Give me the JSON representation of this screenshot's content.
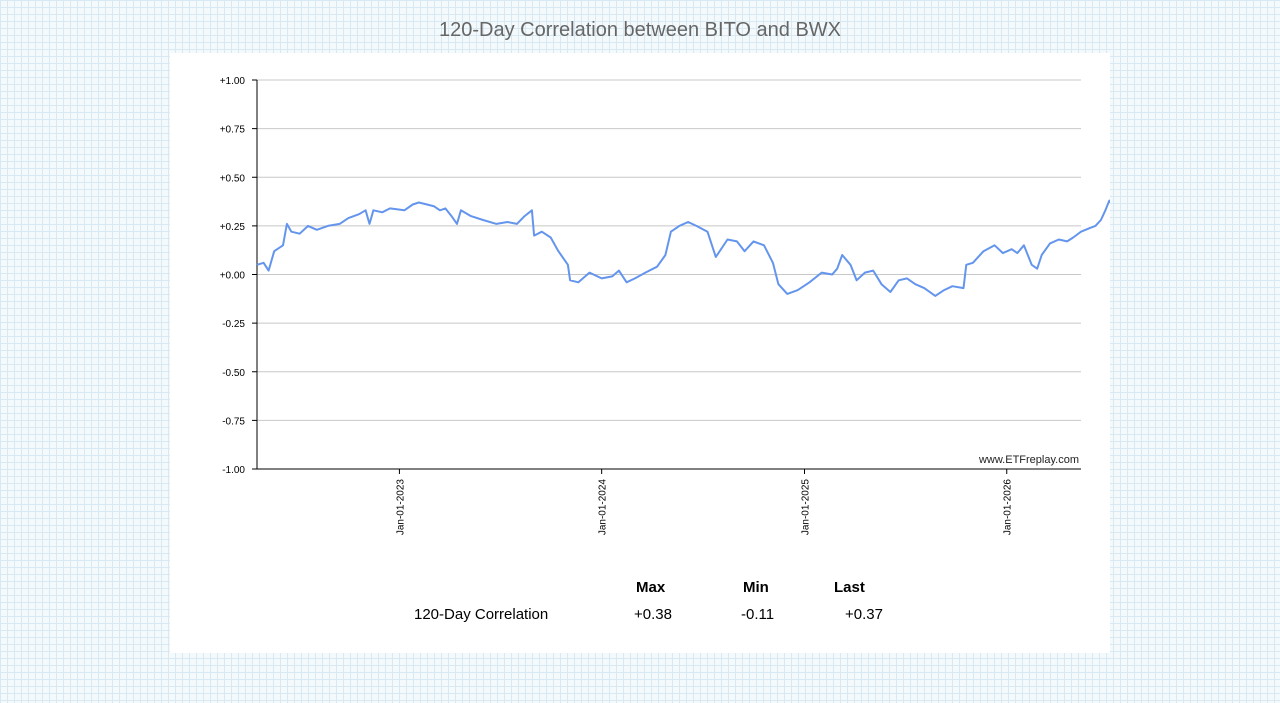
{
  "chart_data": {
    "type": "line",
    "title": "120-Day Correlation between BITO and BWX",
    "watermark": "www.ETFreplay.com",
    "ylim": [
      -1,
      1
    ],
    "y_ticks": [
      "+1.00",
      "+0.75",
      "+0.50",
      "+0.25",
      "+0.00",
      "-0.25",
      "-0.50",
      "-0.75",
      "-1.00"
    ],
    "x_range": [
      "2022-04-19",
      "2026-05-15"
    ],
    "x_ticks": [
      {
        "date": "2023-01-01",
        "label": "Jan-01-2023"
      },
      {
        "date": "2024-01-01",
        "label": "Jan-01-2024"
      },
      {
        "date": "2025-01-01",
        "label": "Jan-01-2025"
      },
      {
        "date": "2026-01-01",
        "label": "Jan-01-2026"
      }
    ],
    "grid": true,
    "line_color": "#6495ED",
    "series": [
      {
        "points": [
          [
            "2022-04-19",
            0.05
          ],
          [
            "2022-05-01",
            0.06
          ],
          [
            "2022-05-10",
            0.02
          ],
          [
            "2022-05-20",
            0.12
          ],
          [
            "2022-06-05",
            0.15
          ],
          [
            "2022-06-12",
            0.26
          ],
          [
            "2022-06-20",
            0.22
          ],
          [
            "2022-07-05",
            0.21
          ],
          [
            "2022-07-20",
            0.25
          ],
          [
            "2022-08-05",
            0.23
          ],
          [
            "2022-08-25",
            0.25
          ],
          [
            "2022-09-15",
            0.26
          ],
          [
            "2022-10-01",
            0.29
          ],
          [
            "2022-10-20",
            0.31
          ],
          [
            "2022-11-01",
            0.33
          ],
          [
            "2022-11-08",
            0.26
          ],
          [
            "2022-11-15",
            0.33
          ],
          [
            "2022-12-01",
            0.32
          ],
          [
            "2022-12-15",
            0.34
          ],
          [
            "2023-01-10",
            0.33
          ],
          [
            "2023-01-25",
            0.36
          ],
          [
            "2023-02-05",
            0.37
          ],
          [
            "2023-02-20",
            0.36
          ],
          [
            "2023-03-05",
            0.35
          ],
          [
            "2023-03-15",
            0.33
          ],
          [
            "2023-03-25",
            0.34
          ],
          [
            "2023-04-05",
            0.3
          ],
          [
            "2023-04-15",
            0.26
          ],
          [
            "2023-04-22",
            0.33
          ],
          [
            "2023-05-10",
            0.3
          ],
          [
            "2023-06-01",
            0.28
          ],
          [
            "2023-06-25",
            0.26
          ],
          [
            "2023-07-15",
            0.27
          ],
          [
            "2023-08-01",
            0.26
          ],
          [
            "2023-08-15",
            0.3
          ],
          [
            "2023-08-28",
            0.33
          ],
          [
            "2023-09-01",
            0.2
          ],
          [
            "2023-09-15",
            0.22
          ],
          [
            "2023-10-01",
            0.19
          ],
          [
            "2023-10-15",
            0.12
          ],
          [
            "2023-11-01",
            0.05
          ],
          [
            "2023-11-05",
            -0.03
          ],
          [
            "2023-11-20",
            -0.04
          ],
          [
            "2023-12-10",
            0.01
          ],
          [
            "2024-01-01",
            -0.02
          ],
          [
            "2024-01-20",
            -0.01
          ],
          [
            "2024-02-01",
            0.02
          ],
          [
            "2024-02-15",
            -0.04
          ],
          [
            "2024-03-01",
            -0.02
          ],
          [
            "2024-03-20",
            0.01
          ],
          [
            "2024-04-10",
            0.04
          ],
          [
            "2024-04-25",
            0.1
          ],
          [
            "2024-05-05",
            0.22
          ],
          [
            "2024-05-20",
            0.25
          ],
          [
            "2024-06-05",
            0.27
          ],
          [
            "2024-06-20",
            0.25
          ],
          [
            "2024-07-10",
            0.22
          ],
          [
            "2024-07-25",
            0.09
          ],
          [
            "2024-08-15",
            0.18
          ],
          [
            "2024-09-01",
            0.17
          ],
          [
            "2024-09-15",
            0.12
          ],
          [
            "2024-10-01",
            0.17
          ],
          [
            "2024-10-20",
            0.15
          ],
          [
            "2024-11-05",
            0.06
          ],
          [
            "2024-11-15",
            -0.05
          ],
          [
            "2024-12-01",
            -0.1
          ],
          [
            "2024-12-20",
            -0.08
          ],
          [
            "2025-01-10",
            -0.04
          ],
          [
            "2025-02-01",
            0.01
          ],
          [
            "2025-02-20",
            0.0
          ],
          [
            "2025-03-01",
            0.03
          ],
          [
            "2025-03-10",
            0.1
          ],
          [
            "2025-03-25",
            0.05
          ],
          [
            "2025-04-05",
            -0.03
          ],
          [
            "2025-04-20",
            0.01
          ],
          [
            "2025-05-05",
            0.02
          ],
          [
            "2025-05-20",
            -0.05
          ],
          [
            "2025-06-05",
            -0.09
          ],
          [
            "2025-06-20",
            -0.03
          ],
          [
            "2025-07-05",
            -0.02
          ],
          [
            "2025-07-20",
            -0.05
          ],
          [
            "2025-08-05",
            -0.07
          ],
          [
            "2025-08-25",
            -0.11
          ],
          [
            "2025-09-10",
            -0.08
          ],
          [
            "2025-09-25",
            -0.06
          ],
          [
            "2025-10-15",
            -0.07
          ],
          [
            "2025-10-20",
            0.05
          ],
          [
            "2025-11-01",
            0.06
          ],
          [
            "2025-11-20",
            0.12
          ],
          [
            "2025-12-10",
            0.15
          ],
          [
            "2025-12-25",
            0.11
          ],
          [
            "2026-01-10",
            0.13
          ],
          [
            "2026-01-20",
            0.11
          ],
          [
            "2026-02-01",
            0.15
          ],
          [
            "2026-02-15",
            0.05
          ],
          [
            "2026-02-25",
            0.03
          ],
          [
            "2026-03-05",
            0.1
          ],
          [
            "2026-03-20",
            0.16
          ],
          [
            "2026-04-05",
            0.18
          ],
          [
            "2026-04-20",
            0.17
          ],
          [
            "2026-05-01",
            0.19
          ],
          [
            "2026-05-15",
            0.22
          ],
          [
            "2026-06-01",
            0.24
          ],
          [
            "2026-06-10",
            0.25
          ],
          [
            "2026-06-20",
            0.28
          ],
          [
            "2026-06-28",
            0.33
          ],
          [
            "2026-07-05",
            0.38
          ],
          [
            "2026-07-08",
            0.37
          ]
        ]
      }
    ]
  },
  "stats": {
    "headers": [
      "Max",
      "Min",
      "Last"
    ],
    "row_label": "120-Day Correlation",
    "values": [
      "+0.38",
      "-0.11",
      "+0.37"
    ]
  }
}
